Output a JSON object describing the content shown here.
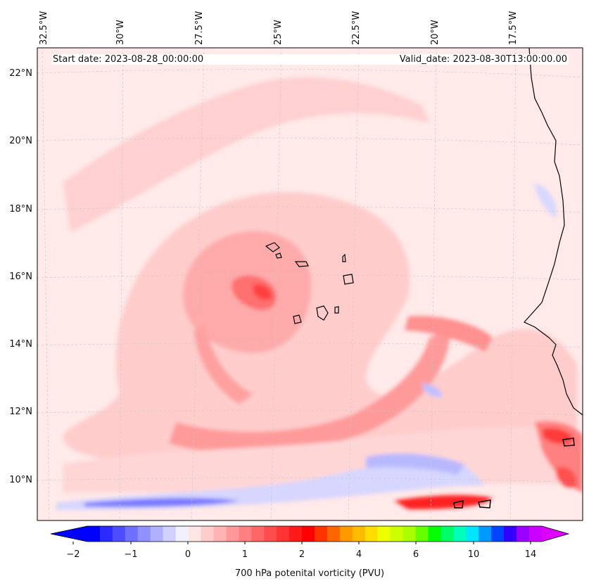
{
  "map": {
    "start_label": "Start date: 2023-08-28_00:00:00",
    "valid_label": "Valid_date: 2023-08-30T13:00:00.00",
    "lon_labels": [
      "32.5°W",
      "30°W",
      "27.5°W",
      "25°W",
      "22.5°W",
      "20°W",
      "17.5°W"
    ],
    "lat_labels": [
      "22°N",
      "20°N",
      "18°N",
      "16°N",
      "14°N",
      "12°N",
      "10°N"
    ]
  },
  "colorbar": {
    "title": "700 hPa potenital vorticity (PVU)",
    "tick_labels": [
      "−2",
      "−1",
      "0",
      "1",
      "2",
      "4",
      "6",
      "10",
      "14"
    ],
    "colors": [
      "#0000ff",
      "#2a2aff",
      "#4d4dff",
      "#7070ff",
      "#9090ff",
      "#b0b0ff",
      "#d0d0ff",
      "#f0f0ff",
      "#ffe6e6",
      "#ffcccc",
      "#ffb3b3",
      "#ff9999",
      "#ff8080",
      "#ff6666",
      "#ff4d4d",
      "#ff3333",
      "#ff1a1a",
      "#ff0000",
      "#ff3300",
      "#ff6600",
      "#ff9900",
      "#ffbb00",
      "#ffdd00",
      "#eeff00",
      "#ccff00",
      "#aaff00",
      "#66ff00",
      "#00ff00",
      "#00ff66",
      "#00ffbb",
      "#00e6ff",
      "#0099ff",
      "#0044ff",
      "#3300ff",
      "#9900ff",
      "#cc00ff"
    ],
    "min_color": "#0000ff",
    "max_color": "#dd00ff"
  }
}
